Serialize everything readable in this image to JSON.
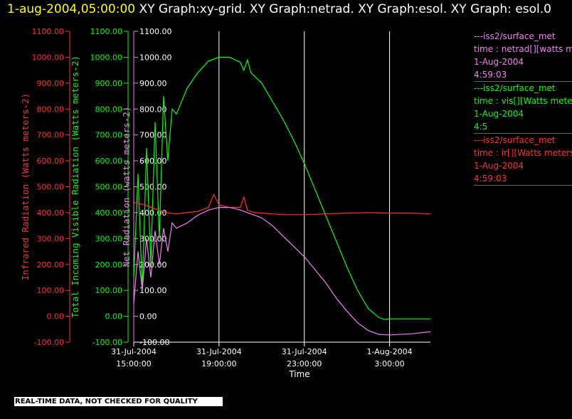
{
  "title": {
    "date": "1-aug-2004,05:00:00",
    "text": " XY Graph:xy-grid.  XY Graph:netrad.  XY Graph:esol.  XY Graph: esol.0"
  },
  "banner": "REAL-TIME DATA, NOT CHECKED FOR QUALITY",
  "legend": [
    {
      "name": "---iss2/surface_met",
      "field": "time : netrad[][watts meters",
      "date": "1-Aug-2004",
      "time": "4:59:03",
      "color": "#ee82ee"
    },
    {
      "name": "---iss2/surface_met",
      "field": "time : vis[][Watts meters",
      "date": "1-Aug-2004",
      "time": "4:5",
      "color": "#00ff00"
    },
    {
      "name": "---iss2/surface_met",
      "field": "time : ir[][Watts meters",
      "date": "1-Aug-2004",
      "time": "4:59:03",
      "color": "#ff3030"
    }
  ],
  "chart_data": {
    "type": "line",
    "xlabel": "Time",
    "xlim": [
      "2004-07-31T15:00",
      "2004-08-01T04:55"
    ],
    "x_ticks": [
      {
        "d": "31-Jul-2004",
        "t": "15:00:00",
        "x": "2004-07-31T15:00"
      },
      {
        "d": "31-Jul-2004",
        "t": "19:00:00",
        "x": "2004-07-31T19:00"
      },
      {
        "d": "31-Jul-2004",
        "t": "23:00:00",
        "x": "2004-07-31T23:00"
      },
      {
        "d": "1-Aug-2004",
        "t": "3:00:00",
        "x": "2004-08-01T03:00"
      }
    ],
    "grid": "vertical",
    "axes": [
      {
        "label": "Infrared Radiation (Watts meters-2)",
        "color": "#ff3030",
        "ylim": [
          -100,
          1100
        ],
        "ticks": [
          "-100.00",
          "0.00",
          "100.00",
          "200.00",
          "300.00",
          "400.00",
          "500.00",
          "600.00",
          "700.00",
          "800.00",
          "900.00",
          "1000.00",
          "1100.00"
        ]
      },
      {
        "label": "Total Incoming Visible Radiation (Watts meters-2)",
        "color": "#00ff00",
        "ylim": [
          -100,
          1100
        ],
        "ticks": [
          "-100.00",
          "0.00",
          "100.00",
          "200.00",
          "300.00",
          "400.00",
          "500.00",
          "600.00",
          "700.00",
          "800.00",
          "900.00",
          "1000.00",
          "1100.00"
        ]
      },
      {
        "label": "Net Radiation (watts meters-2)",
        "color": "#ee82ee",
        "ylim": [
          -100,
          1100
        ],
        "ticks": [
          "-100.00",
          "0.00",
          "100.00",
          "200.00",
          "300.00",
          "400.00",
          "500.00",
          "600.00",
          "700.00",
          "800.00",
          "900.00",
          "1000.00",
          "1100.00"
        ]
      }
    ],
    "series": [
      {
        "color": "#00ff00",
        "x": [
          "2004-07-31T15:00",
          "2004-07-31T15:12",
          "2004-07-31T15:24",
          "2004-07-31T15:36",
          "2004-07-31T15:48",
          "2004-07-31T16:00",
          "2004-07-31T16:12",
          "2004-07-31T16:24",
          "2004-07-31T16:36",
          "2004-07-31T16:48",
          "2004-07-31T17:00",
          "2004-07-31T17:30",
          "2004-07-31T18:00",
          "2004-07-31T18:30",
          "2004-07-31T19:00",
          "2004-07-31T19:30",
          "2004-07-31T20:00",
          "2004-07-31T20:10",
          "2004-07-31T20:20",
          "2004-07-31T20:30",
          "2004-07-31T21:00",
          "2004-07-31T21:30",
          "2004-07-31T22:00",
          "2004-07-31T22:30",
          "2004-07-31T23:00",
          "2004-07-31T23:30",
          "2004-08-01T00:00",
          "2004-08-01T00:30",
          "2004-08-01T01:00",
          "2004-08-01T01:30",
          "2004-08-01T02:00",
          "2004-08-01T02:30",
          "2004-08-01T02:45",
          "2004-08-01T03:00",
          "2004-08-01T04:00",
          "2004-08-01T04:55"
        ],
        "y": [
          150,
          550,
          100,
          650,
          200,
          750,
          300,
          850,
          600,
          800,
          780,
          880,
          940,
          985,
          1000,
          1000,
          980,
          950,
          990,
          940,
          900,
          830,
          760,
          680,
          590,
          490,
          390,
          290,
          190,
          100,
          30,
          -5,
          -12,
          -10,
          -10,
          -10
        ]
      },
      {
        "color": "#ff3030",
        "x": [
          "2004-07-31T15:00",
          "2004-07-31T15:30",
          "2004-07-31T16:00",
          "2004-07-31T16:30",
          "2004-07-31T17:00",
          "2004-07-31T17:30",
          "2004-07-31T18:00",
          "2004-07-31T18:30",
          "2004-07-31T18:45",
          "2004-07-31T19:00",
          "2004-07-31T19:30",
          "2004-07-31T20:00",
          "2004-07-31T20:10",
          "2004-07-31T20:20",
          "2004-07-31T20:40",
          "2004-07-31T21:00",
          "2004-07-31T21:30",
          "2004-07-31T22:00",
          "2004-07-31T23:00",
          "2004-08-01T00:00",
          "2004-08-01T01:00",
          "2004-08-01T02:00",
          "2004-08-01T03:00",
          "2004-08-01T04:00",
          "2004-08-01T04:55"
        ],
        "y": [
          440,
          430,
          415,
          400,
          395,
          400,
          405,
          420,
          470,
          430,
          420,
          420,
          460,
          410,
          400,
          398,
          395,
          392,
          392,
          395,
          398,
          400,
          398,
          398,
          395
        ]
      },
      {
        "color": "#ee82ee",
        "x": [
          "2004-07-31T15:00",
          "2004-07-31T15:12",
          "2004-07-31T15:24",
          "2004-07-31T15:36",
          "2004-07-31T15:48",
          "2004-07-31T16:00",
          "2004-07-31T16:12",
          "2004-07-31T16:24",
          "2004-07-31T16:36",
          "2004-07-31T16:48",
          "2004-07-31T17:00",
          "2004-07-31T17:30",
          "2004-07-31T18:00",
          "2004-07-31T18:30",
          "2004-07-31T19:00",
          "2004-07-31T19:30",
          "2004-07-31T20:00",
          "2004-07-31T20:30",
          "2004-07-31T21:00",
          "2004-07-31T21:30",
          "2004-07-31T22:00",
          "2004-07-31T22:30",
          "2004-07-31T23:00",
          "2004-07-31T23:30",
          "2004-08-01T00:00",
          "2004-08-01T00:30",
          "2004-08-01T01:00",
          "2004-08-01T01:30",
          "2004-08-01T02:00",
          "2004-08-01T02:30",
          "2004-08-01T03:00",
          "2004-08-01T04:00",
          "2004-08-01T04:55"
        ],
        "y": [
          50,
          250,
          100,
          300,
          150,
          330,
          200,
          340,
          250,
          360,
          340,
          360,
          390,
          410,
          420,
          420,
          410,
          395,
          380,
          350,
          310,
          270,
          230,
          180,
          130,
          70,
          20,
          -25,
          -55,
          -70,
          -72,
          -68,
          -60
        ]
      }
    ]
  }
}
